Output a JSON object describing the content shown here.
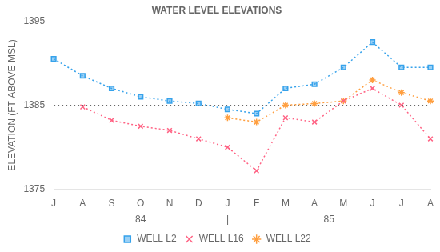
{
  "chart_data": {
    "type": "line",
    "title": "WATER LEVEL ELEVATIONS",
    "ylabel": "ELEVATION (FT ABOVE MSL)",
    "categories": [
      "J",
      "A",
      "S",
      "O",
      "N",
      "D",
      "J",
      "F",
      "M",
      "A",
      "M",
      "J",
      "J",
      "A"
    ],
    "series": [
      {
        "name": "WELL L2",
        "marker": "square",
        "line_style": "dotted",
        "values": [
          1390.5,
          1388.5,
          1387.0,
          1386.0,
          1385.5,
          1385.2,
          1384.5,
          1384.0,
          1387.0,
          1387.5,
          1389.5,
          1392.5,
          1389.5,
          1389.5
        ]
      },
      {
        "name": "WELL L16",
        "marker": "x",
        "line_style": "dotted",
        "values": [
          null,
          1384.8,
          1383.2,
          1382.5,
          1382.0,
          1381.0,
          1380.0,
          1377.2,
          1383.5,
          1383.0,
          1385.5,
          1387.0,
          1385.0,
          1381.0
        ]
      },
      {
        "name": "WELL L22",
        "marker": "star",
        "line_style": "dotted",
        "values": [
          null,
          null,
          null,
          null,
          null,
          null,
          1383.5,
          1383.0,
          1385.0,
          1385.2,
          1385.5,
          1388.0,
          1386.5,
          1385.5
        ]
      }
    ],
    "ylim": [
      1375,
      1395
    ],
    "yticks": [
      1375,
      1385,
      1395
    ],
    "hline": 1385,
    "annotations": [
      {
        "text": "84",
        "x": 3.0
      },
      {
        "text": "|",
        "x": 6.0
      },
      {
        "text": "85",
        "x": 9.5
      }
    ],
    "grid": false,
    "legend": "bottom"
  }
}
